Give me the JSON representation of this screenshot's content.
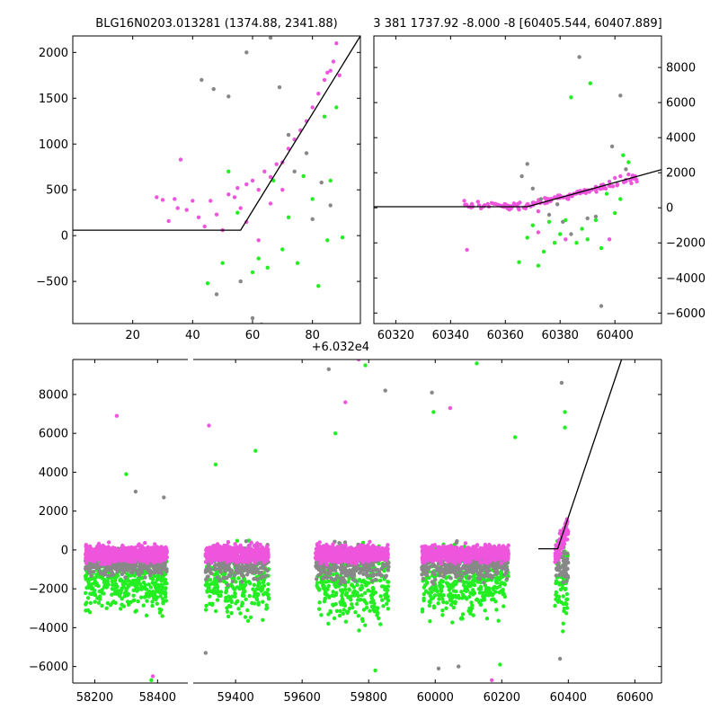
{
  "chart_data": [
    {
      "type": "scatter",
      "title": "BLG16N0203.013281 (1374.88, 2341.88)",
      "xlim": [
        0,
        96
      ],
      "ylim": [
        -960,
        2180
      ],
      "x_offset_label": "+6.032e4",
      "x_ticks": [
        {
          "v": 20,
          "label": "20"
        },
        {
          "v": 40,
          "label": "40"
        },
        {
          "v": 60,
          "label": "60"
        },
        {
          "v": 80,
          "label": "80"
        }
      ],
      "y_ticks": [
        {
          "v": -500,
          "label": "−500"
        },
        {
          "v": 0,
          "label": "0"
        },
        {
          "v": 500,
          "label": "500"
        },
        {
          "v": 1000,
          "label": "1000"
        },
        {
          "v": 1500,
          "label": "1500"
        },
        {
          "v": 2000,
          "label": "2000"
        }
      ],
      "y_ticks_side": "left",
      "series": [
        {
          "color": "#ee55dd",
          "points": [
            [
              28,
              420
            ],
            [
              30,
              390
            ],
            [
              32,
              160
            ],
            [
              34,
              400
            ],
            [
              35,
              300
            ],
            [
              36,
              830
            ],
            [
              38,
              280
            ],
            [
              40,
              380
            ],
            [
              42,
              200
            ],
            [
              44,
              100
            ],
            [
              46,
              380
            ],
            [
              48,
              230
            ],
            [
              50,
              60
            ],
            [
              52,
              450
            ],
            [
              54,
              420
            ],
            [
              55,
              520
            ],
            [
              56,
              300
            ],
            [
              58,
              560
            ],
            [
              60,
              600
            ],
            [
              62,
              500
            ],
            [
              64,
              700
            ],
            [
              66,
              640
            ],
            [
              68,
              780
            ],
            [
              70,
              800
            ],
            [
              72,
              950
            ],
            [
              74,
              1050
            ],
            [
              76,
              1150
            ],
            [
              78,
              1250
            ],
            [
              80,
              1400
            ],
            [
              82,
              1550
            ],
            [
              84,
              1700
            ],
            [
              85,
              1780
            ],
            [
              86,
              1800
            ],
            [
              87,
              1900
            ],
            [
              88,
              2100
            ],
            [
              89,
              1750
            ],
            [
              62,
              -50
            ],
            [
              58,
              150
            ],
            [
              66,
              350
            ],
            [
              70,
              500
            ]
          ]
        },
        {
          "color": "#22ee22",
          "points": [
            [
              45,
              -520
            ],
            [
              50,
              -300
            ],
            [
              52,
              700
            ],
            [
              55,
              250
            ],
            [
              60,
              -400
            ],
            [
              62,
              -250
            ],
            [
              65,
              -350
            ],
            [
              67,
              600
            ],
            [
              70,
              -150
            ],
            [
              72,
              200
            ],
            [
              75,
              -300
            ],
            [
              77,
              650
            ],
            [
              80,
              400
            ],
            [
              82,
              -550
            ],
            [
              84,
              1300
            ],
            [
              85,
              -50
            ],
            [
              88,
              1400
            ],
            [
              90,
              -20
            ],
            [
              86,
              600
            ]
          ]
        },
        {
          "color": "#888888",
          "points": [
            [
              43,
              1700
            ],
            [
              47,
              1600
            ],
            [
              52,
              1520
            ],
            [
              58,
              2000
            ],
            [
              66,
              2160
            ],
            [
              69,
              1620
            ],
            [
              60,
              -900
            ],
            [
              63,
              -970
            ],
            [
              72,
              1100
            ],
            [
              74,
              700
            ],
            [
              78,
              900
            ],
            [
              80,
              180
            ],
            [
              83,
              580
            ],
            [
              86,
              330
            ],
            [
              56,
              -500
            ],
            [
              48,
              -640
            ]
          ]
        }
      ],
      "lines": [
        {
          "color": "#000000",
          "points": [
            [
              0,
              60
            ],
            [
              56,
              60
            ],
            [
              96,
              2180
            ]
          ]
        }
      ]
    },
    {
      "type": "scatter",
      "title": "3 381 1737.92 -8.000 -8 [60405.544, 60407.889]",
      "xlim": [
        60312,
        60417
      ],
      "ylim": [
        -6600,
        9800
      ],
      "x_ticks": [
        {
          "v": 60320,
          "label": "60320"
        },
        {
          "v": 60340,
          "label": "60340"
        },
        {
          "v": 60360,
          "label": "60360"
        },
        {
          "v": 60380,
          "label": "60380"
        },
        {
          "v": 60400,
          "label": "60400"
        }
      ],
      "y_ticks": [
        {
          "v": -6000,
          "label": "−6000"
        },
        {
          "v": -4000,
          "label": "−4000"
        },
        {
          "v": -2000,
          "label": "−2000"
        },
        {
          "v": 0,
          "label": "0"
        },
        {
          "v": 2000,
          "label": "2000"
        },
        {
          "v": 4000,
          "label": "4000"
        },
        {
          "v": 6000,
          "label": "6000"
        },
        {
          "v": 8000,
          "label": "8000"
        }
      ],
      "y_ticks_side": "right",
      "series": [
        {
          "color": "#ee55dd",
          "points": [
            [
              60345,
              400
            ],
            [
              60350,
              350
            ],
            [
              60355,
              280
            ],
            [
              60360,
              200
            ],
            [
              60362,
              100
            ],
            [
              60365,
              -100
            ],
            [
              60368,
              200
            ],
            [
              60370,
              300
            ],
            [
              60372,
              -200
            ],
            [
              60375,
              400
            ],
            [
              60378,
              600
            ],
            [
              60380,
              700
            ],
            [
              60383,
              500
            ],
            [
              60385,
              800
            ],
            [
              60388,
              900
            ],
            [
              60390,
              1000
            ],
            [
              60393,
              1200
            ],
            [
              60395,
              1300
            ],
            [
              60398,
              1500
            ],
            [
              60400,
              1700
            ],
            [
              60402,
              1800
            ],
            [
              60404,
              1600
            ],
            [
              60406,
              1400
            ],
            [
              60408,
              1500
            ],
            [
              60346,
              -2400
            ],
            [
              60372,
              -1400
            ],
            [
              60382,
              -1800
            ],
            [
              60398,
              -1800
            ],
            [
              60405,
              1900
            ]
          ]
        },
        {
          "color": "#22ee22",
          "points": [
            [
              60365,
              -3100
            ],
            [
              60368,
              -1700
            ],
            [
              60370,
              -1000
            ],
            [
              60372,
              -3300
            ],
            [
              60374,
              -2500
            ],
            [
              60376,
              -800
            ],
            [
              60378,
              -2000
            ],
            [
              60380,
              -1500
            ],
            [
              60382,
              -700
            ],
            [
              60384,
              6300
            ],
            [
              60386,
              -2000
            ],
            [
              60388,
              -1200
            ],
            [
              60390,
              -1800
            ],
            [
              60391,
              7100
            ],
            [
              60393,
              -700
            ],
            [
              60395,
              -2300
            ],
            [
              60397,
              800
            ],
            [
              60400,
              -300
            ],
            [
              60402,
              500
            ],
            [
              60403,
              3000
            ],
            [
              60405,
              2600
            ]
          ]
        },
        {
          "color": "#888888",
          "points": [
            [
              60366,
              1800
            ],
            [
              60368,
              2500
            ],
            [
              60370,
              1100
            ],
            [
              60373,
              500
            ],
            [
              60376,
              -400
            ],
            [
              60379,
              200
            ],
            [
              60381,
              -800
            ],
            [
              60384,
              -1500
            ],
            [
              60387,
              8600
            ],
            [
              60390,
              -600
            ],
            [
              60393,
              -500
            ],
            [
              60395,
              -5600
            ],
            [
              60399,
              3500
            ],
            [
              60402,
              6400
            ],
            [
              60404,
              2200
            ]
          ]
        }
      ],
      "lines": [
        {
          "color": "#000000",
          "points": [
            [
              60312,
              60
            ],
            [
              60368,
              60
            ],
            [
              60417,
              2180
            ]
          ]
        }
      ]
    },
    {
      "type": "scatter",
      "title": "",
      "broken_x_axis": true,
      "xlim_left": [
        58130,
        58505
      ],
      "xlim_right": [
        59270,
        60680
      ],
      "ylim": [
        -6850,
        9800
      ],
      "x_ticks": [
        {
          "v": 58200,
          "label": "58200"
        },
        {
          "v": 58400,
          "label": "58400"
        },
        {
          "v": 59400,
          "label": "59400"
        },
        {
          "v": 59600,
          "label": "59600"
        },
        {
          "v": 59800,
          "label": "59800"
        },
        {
          "v": 60000,
          "label": "60000"
        },
        {
          "v": 60200,
          "label": "60200"
        },
        {
          "v": 60400,
          "label": "60400"
        },
        {
          "v": 60600,
          "label": "60600"
        }
      ],
      "y_ticks": [
        {
          "v": -6000,
          "label": "−6000"
        },
        {
          "v": -4000,
          "label": "−4000"
        },
        {
          "v": -2000,
          "label": "−2000"
        },
        {
          "v": 0,
          "label": "0"
        },
        {
          "v": 2000,
          "label": "2000"
        },
        {
          "v": 4000,
          "label": "4000"
        },
        {
          "v": 6000,
          "label": "6000"
        },
        {
          "v": 8000,
          "label": "8000"
        }
      ],
      "y_ticks_side": "left",
      "clusters": [
        {
          "x0": 58170,
          "x1": 58430,
          "pink": [
            -1200,
            900
          ],
          "grey": [
            -2400,
            1800
          ],
          "green": [
            -4300,
            3900
          ]
        },
        {
          "x0": 59310,
          "x1": 59500,
          "pink": [
            -1200,
            900
          ],
          "grey": [
            -2800,
            3000
          ],
          "green": [
            -4500,
            5000
          ]
        },
        {
          "x0": 59640,
          "x1": 59860,
          "pink": [
            -1200,
            900
          ],
          "grey": [
            -2800,
            3500
          ],
          "green": [
            -5300,
            6000
          ]
        },
        {
          "x0": 59960,
          "x1": 60220,
          "pink": [
            -1200,
            900
          ],
          "grey": [
            -2600,
            3000
          ],
          "green": [
            -4300,
            5700
          ]
        },
        {
          "x0": 60360,
          "x1": 60400,
          "pink": [
            -800,
            2400
          ],
          "grey": [
            -3000,
            2600
          ],
          "green": [
            -4800,
            7000
          ]
        }
      ],
      "outliers": [
        {
          "color": "#ee55dd",
          "points": [
            [
              58270,
              6900
            ],
            [
              58385,
              -6500
            ],
            [
              59320,
              6400
            ],
            [
              59730,
              7600
            ],
            [
              59770,
              9800
            ],
            [
              60045,
              7300
            ],
            [
              60170,
              -6700
            ]
          ]
        },
        {
          "color": "#22ee22",
          "points": [
            [
              58300,
              3900
            ],
            [
              58380,
              -6700
            ],
            [
              59340,
              4400
            ],
            [
              59460,
              5100
            ],
            [
              59700,
              6000
            ],
            [
              59790,
              9500
            ],
            [
              59820,
              -6200
            ],
            [
              59995,
              7100
            ],
            [
              60125,
              9600
            ],
            [
              60195,
              -5900
            ],
            [
              60390,
              7100
            ],
            [
              60390,
              6300
            ],
            [
              60240,
              5800
            ]
          ]
        },
        {
          "color": "#888888",
          "points": [
            [
              58330,
              3000
            ],
            [
              58420,
              2700
            ],
            [
              59310,
              -5300
            ],
            [
              59680,
              9300
            ],
            [
              59850,
              8200
            ],
            [
              59990,
              8100
            ],
            [
              60010,
              -6100
            ],
            [
              60070,
              -6000
            ],
            [
              60380,
              8600
            ],
            [
              60375,
              -5600
            ]
          ]
        }
      ],
      "lines": [
        {
          "color": "#000000",
          "points": [
            [
              60310,
              60
            ],
            [
              60368,
              60
            ],
            [
              60560,
              9800
            ]
          ]
        }
      ]
    }
  ]
}
